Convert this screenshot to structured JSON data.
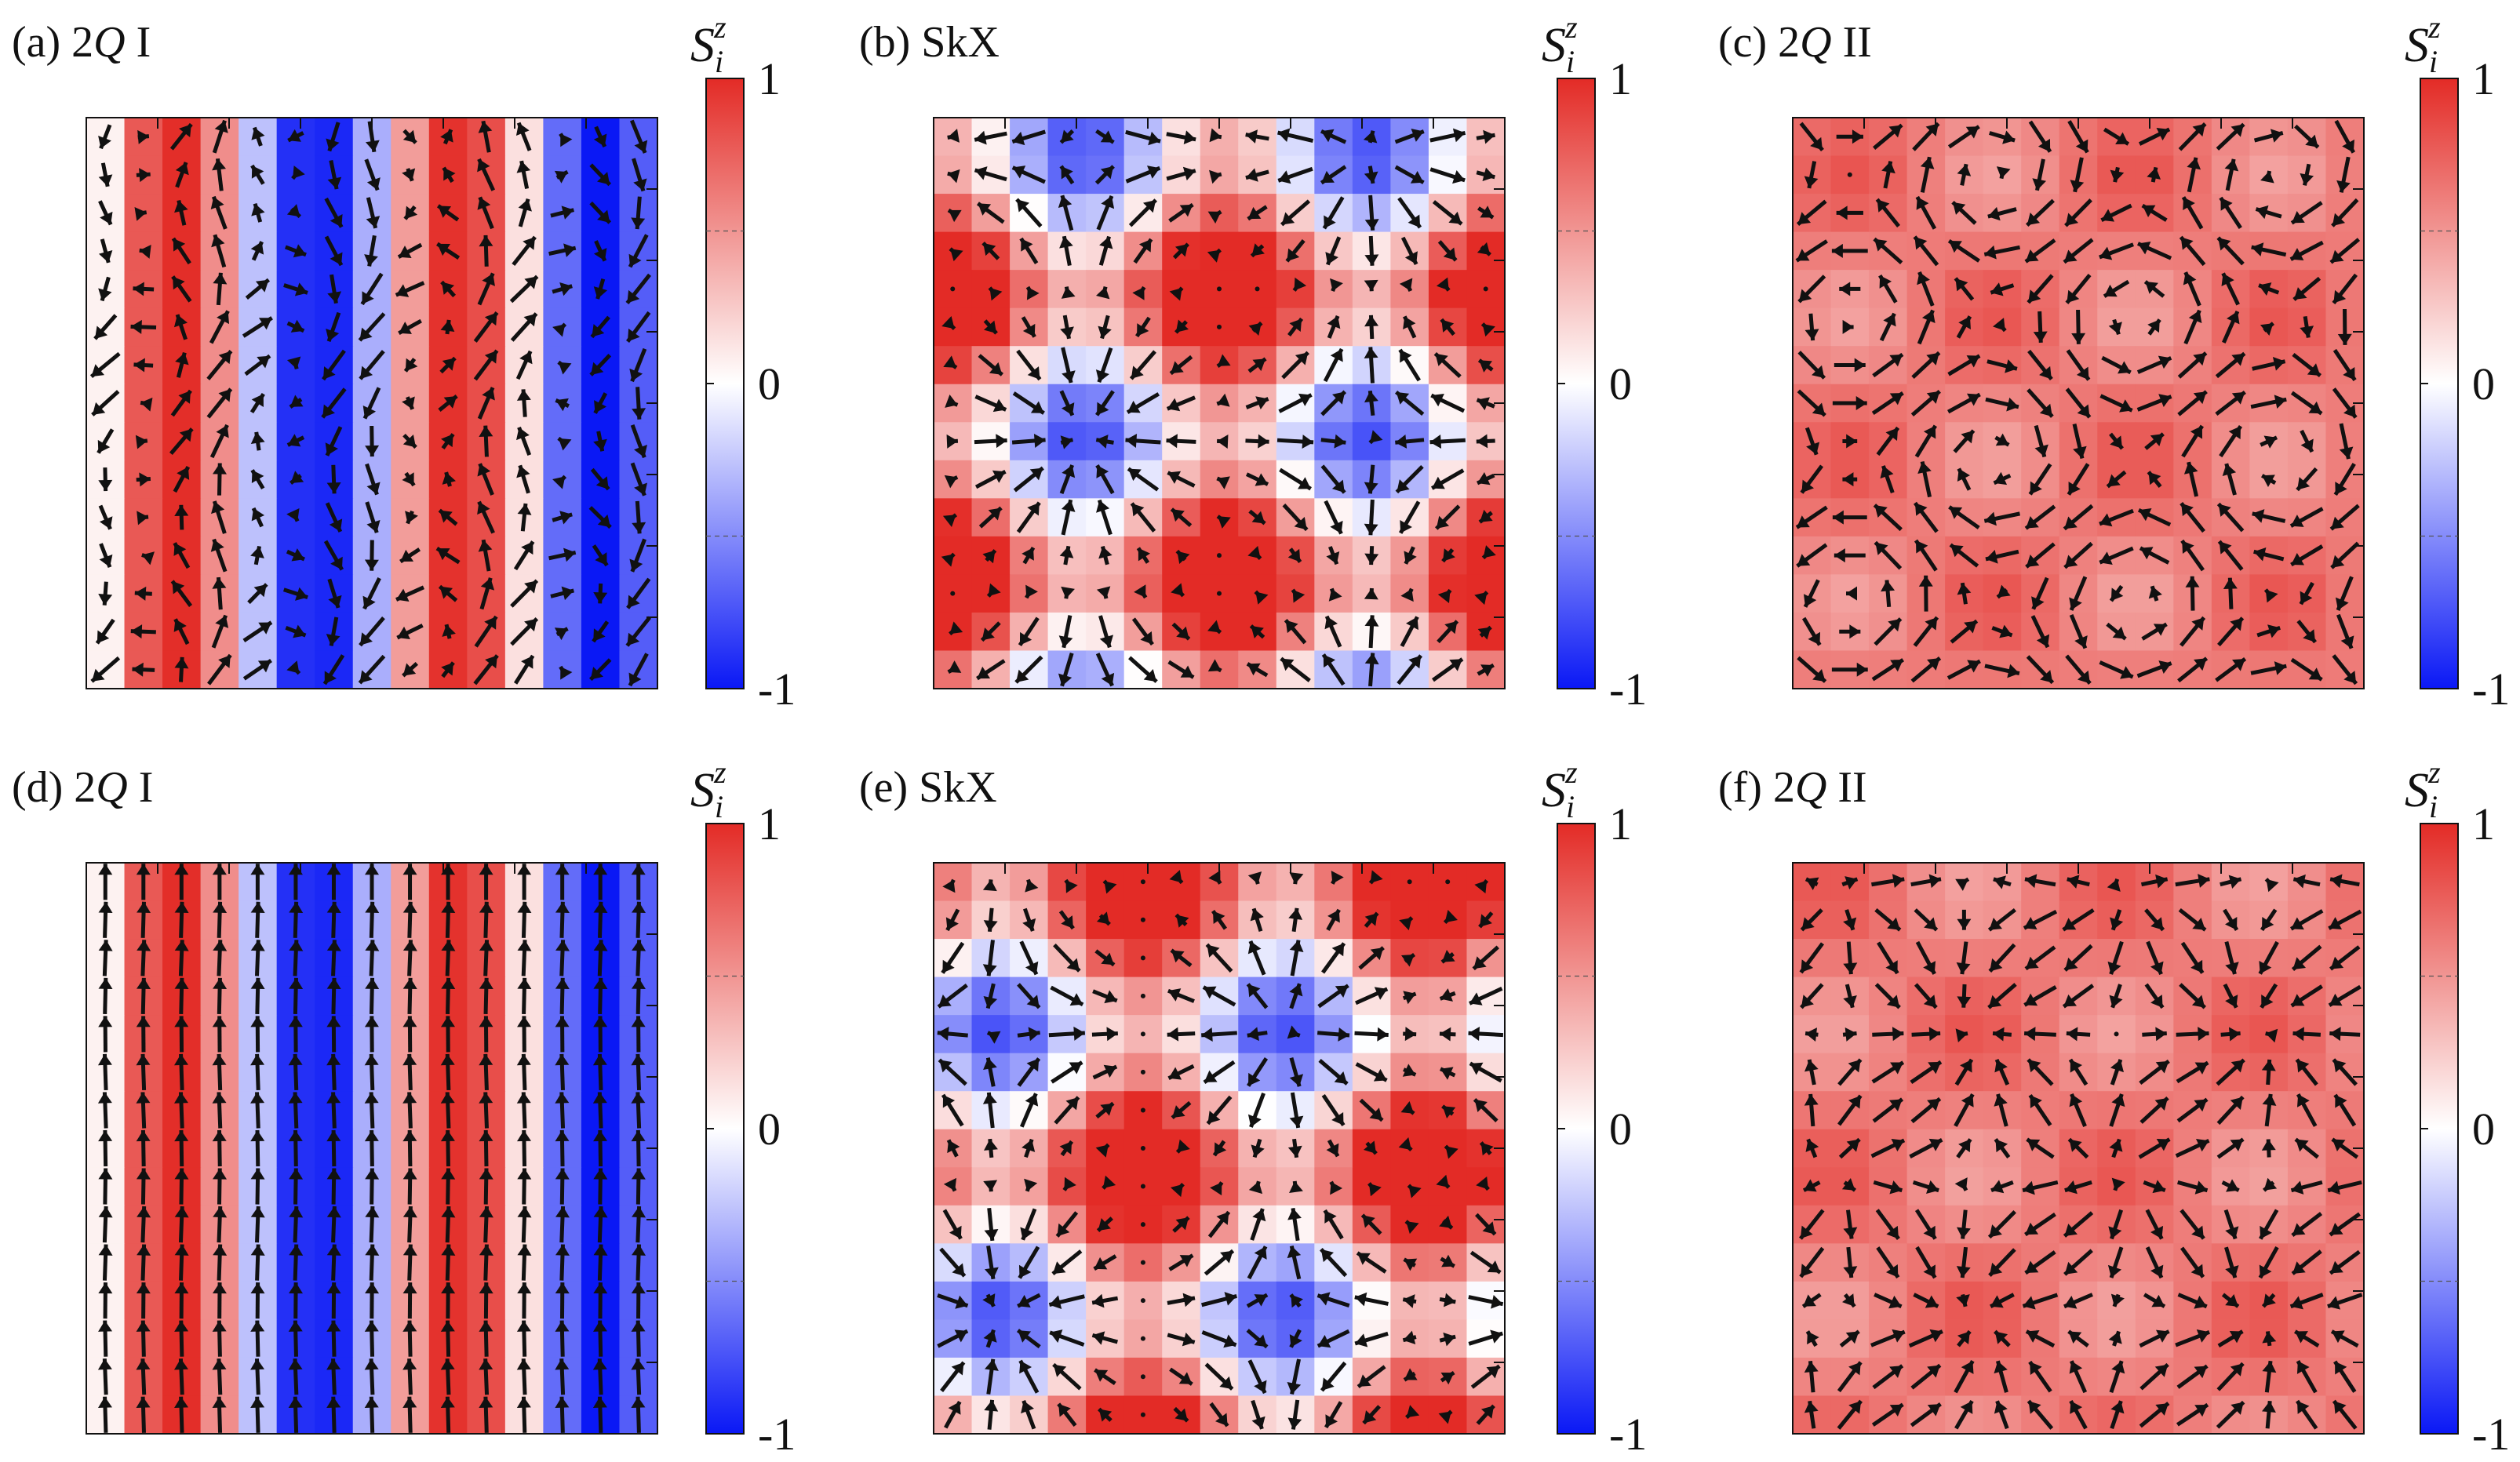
{
  "colorbar": {
    "title_base": "S",
    "title_sub": "i",
    "title_sup": "z",
    "ticks": [
      "1",
      "0",
      "-1"
    ],
    "tick_values": [
      1,
      0,
      -1
    ],
    "colors": {
      "max": "#e32b26",
      "mid": "#ffffff",
      "min": "#0a18f5"
    }
  },
  "chart_data": [
    {
      "panel": "(a)",
      "label_prefix": "(a) 2",
      "label_italic": "Q",
      "label_suffix": " I",
      "type": "heatmap",
      "state": "2Q I",
      "z_range": [
        -1,
        1
      ],
      "pattern": "stripe",
      "note": "vertical stripes of S^z with in-plane spin textures"
    },
    {
      "panel": "(b)",
      "label_prefix": "(b) SkX",
      "label_italic": "",
      "label_suffix": "",
      "type": "heatmap",
      "state": "SkX",
      "z_range": [
        -1,
        1
      ],
      "pattern": "skx_b"
    },
    {
      "panel": "(c)",
      "label_prefix": "(c) 2",
      "label_italic": "Q",
      "label_suffix": " II",
      "type": "heatmap",
      "state": "2Q II",
      "z_range": [
        -1,
        1
      ],
      "pattern": "uniform"
    },
    {
      "panel": "(d)",
      "label_prefix": "(d) 2",
      "label_italic": "Q",
      "label_suffix": " I",
      "type": "heatmap",
      "state": "2Q I",
      "z_range": [
        -1,
        1
      ],
      "pattern": "stripe_clean"
    },
    {
      "panel": "(e)",
      "label_prefix": "(e) SkX",
      "label_italic": "",
      "label_suffix": "",
      "type": "heatmap",
      "state": "SkX",
      "z_range": [
        -1,
        1
      ],
      "pattern": "skx_e"
    },
    {
      "panel": "(f)",
      "label_prefix": "(f) 2",
      "label_italic": "Q",
      "label_suffix": " II",
      "type": "heatmap",
      "state": "2Q II",
      "z_range": [
        -1,
        1
      ],
      "pattern": "uniform2"
    }
  ]
}
